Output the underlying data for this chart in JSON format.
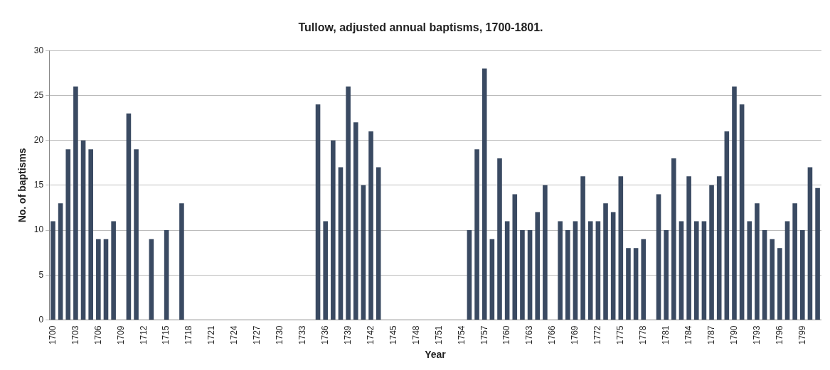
{
  "chart_data": {
    "type": "bar",
    "title": "Tullow, adjusted annual baptisms, 1700-1801.",
    "xlabel": "Year",
    "ylabel": "No. of baptisms",
    "categories": [
      "1700",
      null,
      null,
      "1703",
      null,
      null,
      "1706",
      null,
      null,
      "1709",
      null,
      null,
      "1712",
      null,
      null,
      "1715",
      null,
      null,
      "1718",
      null,
      null,
      "1721",
      null,
      null,
      "1724",
      null,
      null,
      "1727",
      null,
      null,
      "1730",
      null,
      null,
      "1733",
      null,
      null,
      "1736",
      null,
      null,
      "1739",
      null,
      null,
      "1742",
      null,
      null,
      "1745",
      null,
      null,
      "1748",
      null,
      null,
      "1751",
      null,
      null,
      "1754",
      null,
      null,
      "1757",
      null,
      null,
      "1760",
      null,
      null,
      "1763",
      null,
      null,
      "1766",
      null,
      null,
      "1769",
      null,
      null,
      "1772",
      null,
      null,
      "1775",
      null,
      null,
      "1778",
      null,
      null,
      "1781",
      null,
      null,
      "1784",
      null,
      null,
      "1787",
      null,
      null,
      "1790",
      null,
      null,
      "1793",
      null,
      null,
      "1796",
      null,
      null,
      "1799",
      null,
      null
    ],
    "values": [
      11,
      13,
      19,
      26,
      20,
      19,
      9,
      9,
      11,
      0,
      23,
      19,
      0,
      9,
      0,
      10,
      0,
      13,
      0,
      0,
      0,
      0,
      0,
      0,
      0,
      0,
      0,
      0,
      0,
      0,
      0,
      0,
      0,
      0,
      0,
      24,
      11,
      20,
      17,
      26,
      22,
      15,
      21,
      17,
      0,
      0,
      0,
      0,
      0,
      0,
      0,
      0,
      0,
      0,
      0,
      10,
      19,
      28,
      9,
      18,
      11,
      14,
      10,
      10,
      12,
      15,
      0,
      11,
      10,
      11,
      16,
      11,
      11,
      13,
      12,
      16,
      8,
      8,
      9,
      0,
      14,
      10,
      18,
      11,
      16,
      11,
      11,
      15,
      16,
      21,
      26,
      24,
      11,
      13,
      10,
      9,
      8,
      11,
      13,
      10,
      17,
      14.7
    ],
    "color": "#3a4a62",
    "ylim": [
      0,
      30
    ],
    "yticks": [
      0,
      5,
      10,
      15,
      20,
      25,
      30
    ],
    "grid": "y"
  }
}
